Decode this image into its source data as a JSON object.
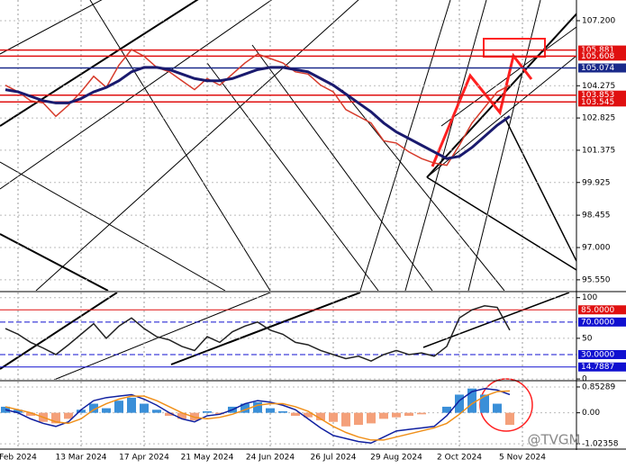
{
  "chart_data": [
    {
      "type": "line",
      "series": [
        {
          "color": "#d63a2a",
          "values": [
            104.3,
            104.0,
            103.6,
            103.5,
            102.9,
            103.4,
            104.0,
            104.7,
            104.2,
            105.2,
            105.9,
            105.6,
            105.1,
            104.9,
            104.5,
            104.1,
            104.6,
            104.3,
            104.8,
            105.3,
            105.7,
            105.5,
            105.3,
            104.9,
            104.8,
            104.3,
            104.0,
            103.2,
            102.9,
            102.6,
            101.8,
            101.7,
            101.3,
            101.0,
            100.8,
            100.7,
            101.6,
            102.6,
            103.3,
            104.0,
            104.3,
            null,
            null,
            null,
            null
          ]
        },
        {
          "color": "#1a1a6e",
          "values": [
            104.1,
            104.0,
            103.8,
            103.6,
            103.5,
            103.5,
            103.7,
            104.0,
            104.2,
            104.5,
            104.9,
            105.1,
            105.1,
            105.0,
            104.8,
            104.6,
            104.5,
            104.5,
            104.6,
            104.8,
            105.0,
            105.1,
            105.1,
            105.0,
            104.9,
            104.6,
            104.3,
            103.9,
            103.5,
            103.1,
            102.6,
            102.2,
            101.9,
            101.6,
            101.3,
            101.0,
            101.1,
            101.5,
            102.0,
            102.5,
            102.9,
            null,
            null,
            null,
            null
          ]
        }
      ],
      "ylim": [
        95.06,
        108.13
      ],
      "yticks": [
        {
          "value": 107.2,
          "label": "107.200"
        },
        104.275,
        102.825,
        101.375,
        99.925,
        98.455,
        {
          "value": 97,
          "label": "97.000"
        },
        {
          "value": 95.55,
          "label": "95.550"
        }
      ],
      "hlines": [
        {
          "value": 105.881,
          "color": "#e01010"
        },
        {
          "value": 105.608,
          "color": "#e01010"
        },
        {
          "value": 105.074,
          "color": "#1a2a8a"
        },
        {
          "value": 103.853,
          "color": "#e01010"
        },
        {
          "value": 103.545,
          "color": "#e01010"
        }
      ],
      "grid": true
    },
    {
      "type": "line",
      "series": [
        {
          "color": "#222222",
          "values": [
            62,
            55,
            45,
            38,
            30,
            42,
            55,
            68,
            50,
            65,
            75,
            62,
            52,
            48,
            40,
            35,
            52,
            45,
            58,
            65,
            70,
            60,
            55,
            45,
            42,
            35,
            30,
            25,
            28,
            22,
            30,
            35,
            30,
            32,
            28,
            40,
            75,
            85,
            90,
            88,
            60,
            null,
            null,
            null,
            null
          ]
        }
      ],
      "ylim": [
        -1,
        106.3
      ],
      "yticks": [
        100,
        50,
        0
      ],
      "hlines": [
        {
          "value": 85,
          "label": "85.0000",
          "color": "#e01010"
        },
        {
          "value": 70,
          "label": "70.0000",
          "color": "#1010d0"
        },
        {
          "value": 30,
          "label": "30.0000",
          "color": "#1010d0"
        },
        {
          "value": 14.7887,
          "color": "#1010d0"
        }
      ],
      "grid": true
    },
    {
      "type": "macd",
      "categories": [
        null,
        "Feb 2024",
        null,
        null,
        null,
        null,
        "13 Mar 2024",
        null,
        null,
        null,
        null,
        "17 Apr 2024",
        null,
        null,
        null,
        null,
        "21 May 2024",
        null,
        null,
        null,
        null,
        "24 Jun 2024",
        null,
        null,
        null,
        null,
        "26 Jul 2024",
        null,
        null,
        null,
        null,
        "29 Aug 2024",
        null,
        null,
        null,
        null,
        "2 Oct 2024",
        null,
        null,
        null,
        null,
        "5 Nov 2024",
        null,
        null,
        null
      ],
      "histogram": {
        "colors": [
          "#3a8fd8",
          "#f4a07a"
        ],
        "values": [
          0.2,
          0.1,
          -0.1,
          -0.3,
          -0.35,
          -0.2,
          0.1,
          0.3,
          0.15,
          0.4,
          0.5,
          0.3,
          0.1,
          -0.1,
          -0.2,
          -0.25,
          0.05,
          -0.05,
          0.2,
          0.3,
          0.35,
          0.15,
          0.05,
          -0.1,
          -0.15,
          -0.25,
          -0.3,
          -0.45,
          -0.4,
          -0.35,
          -0.2,
          -0.15,
          -0.1,
          -0.05,
          0.0,
          0.2,
          0.6,
          0.8,
          0.6,
          0.3,
          -0.4,
          null,
          null,
          null,
          null
        ]
      },
      "series": [
        {
          "color": "#1020a0",
          "values": [
            0.1,
            0.0,
            -0.2,
            -0.35,
            -0.45,
            -0.3,
            0.1,
            0.4,
            0.5,
            0.55,
            0.6,
            0.45,
            0.25,
            0.0,
            -0.2,
            -0.3,
            -0.1,
            -0.05,
            0.1,
            0.3,
            0.4,
            0.35,
            0.25,
            0.1,
            -0.2,
            -0.5,
            -0.75,
            -0.85,
            -0.95,
            -1.0,
            -0.8,
            -0.6,
            -0.55,
            -0.5,
            -0.45,
            -0.1,
            0.4,
            0.7,
            0.8,
            0.75,
            0.6,
            null,
            null,
            null,
            null
          ]
        },
        {
          "color": "#f0901a",
          "values": [
            0.2,
            0.1,
            0.0,
            -0.15,
            -0.3,
            -0.35,
            -0.2,
            0.1,
            0.3,
            0.45,
            0.55,
            0.55,
            0.4,
            0.2,
            0.0,
            -0.15,
            -0.2,
            -0.15,
            -0.05,
            0.1,
            0.25,
            0.3,
            0.3,
            0.2,
            0.05,
            -0.2,
            -0.45,
            -0.65,
            -0.8,
            -0.9,
            -0.9,
            -0.8,
            -0.7,
            -0.6,
            -0.5,
            -0.35,
            -0.05,
            0.3,
            0.55,
            0.7,
            0.72,
            null,
            null,
            null,
            null
          ]
        }
      ],
      "ylim": [
        -1.17,
        1.03
      ],
      "yticks": [
        0.85289,
        {
          "value": 0,
          "label": "0.00"
        },
        -1.02358
      ],
      "annotation": "@TVGM",
      "grid": true
    }
  ]
}
